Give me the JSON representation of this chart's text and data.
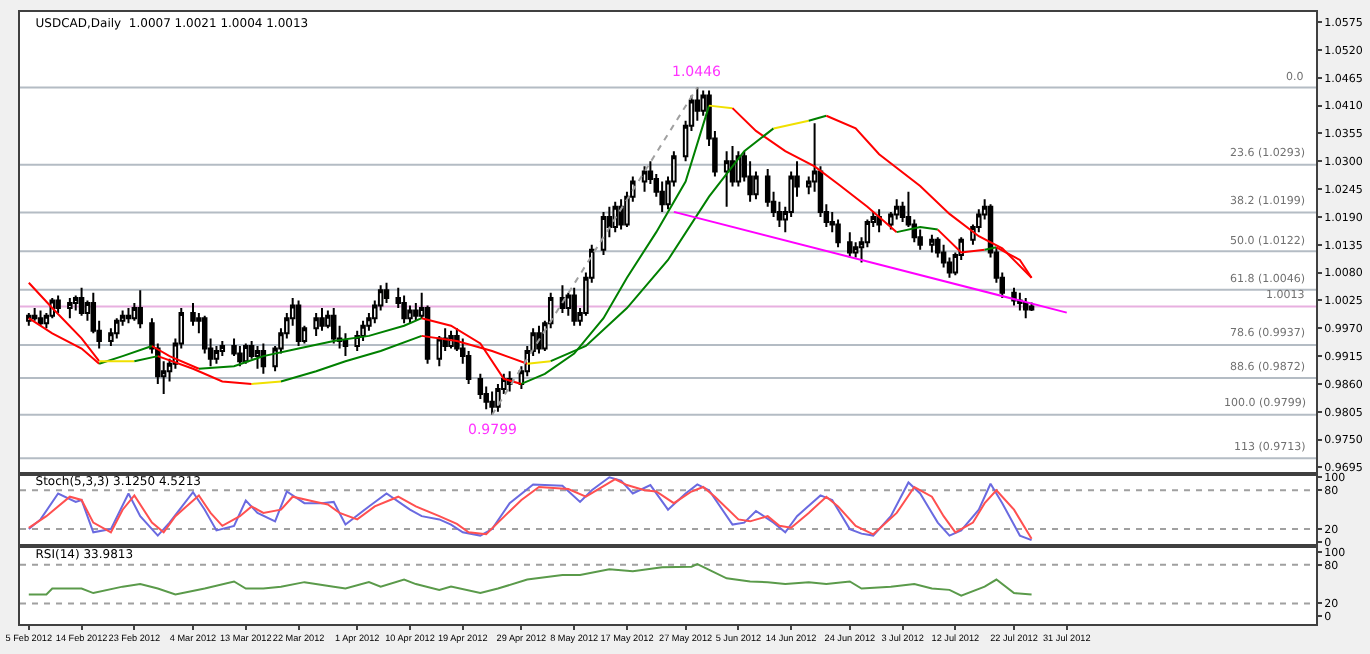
{
  "chart_data": [
    {
      "type": "candlestick",
      "title": "USDCAD,Daily  1.0007 1.0021 1.0004 1.0013",
      "tick_labels": "y",
      "xlim": [
        "2012-02-03T12:00",
        "2012-09-11T12:00"
      ],
      "ylim": [
        0.9686,
        1.0595
      ],
      "yticks": [
        1.0575,
        {
          "value": 1.052,
          "label": "1.0520"
        },
        1.0465,
        {
          "value": 1.041,
          "label": "1.0410"
        },
        1.0355,
        {
          "value": 1.03,
          "label": "1.0300"
        },
        1.0245,
        {
          "value": 1.019,
          "label": "1.0190"
        },
        1.0135,
        {
          "value": 1.008,
          "label": "1.0080"
        },
        1.0025,
        {
          "value": 0.997,
          "label": "0.9970"
        },
        0.9915,
        {
          "value": 0.986,
          "label": "0.9860"
        },
        0.9805,
        {
          "value": 0.975,
          "label": "0.9750"
        },
        0.9695
      ],
      "x": [
        "2012-02-05",
        "2012-02-06",
        "2012-02-07",
        "2012-02-08",
        "2012-02-09",
        "2012-02-10",
        "2012-02-12",
        "2012-02-13",
        "2012-02-14",
        "2012-02-15",
        "2012-02-16",
        "2012-02-17",
        "2012-02-19",
        "2012-02-20",
        "2012-02-21",
        "2012-02-22",
        "2012-02-23",
        "2012-02-24",
        "2012-02-26",
        "2012-02-27",
        "2012-02-28",
        "2012-02-29",
        "2012-03-01",
        "2012-03-02",
        "2012-03-04",
        "2012-03-05",
        "2012-03-06",
        "2012-03-07",
        "2012-03-08",
        "2012-03-09",
        "2012-03-11",
        "2012-03-12",
        "2012-03-13",
        "2012-03-14",
        "2012-03-15",
        "2012-03-16",
        "2012-03-18",
        "2012-03-19",
        "2012-03-20",
        "2012-03-21",
        "2012-03-22",
        "2012-03-23",
        "2012-03-25",
        "2012-03-26",
        "2012-03-27",
        "2012-03-28",
        "2012-03-29",
        "2012-03-30",
        "2012-04-01",
        "2012-04-02",
        "2012-04-03",
        "2012-04-04",
        "2012-04-05",
        "2012-04-06",
        "2012-04-08",
        "2012-04-09",
        "2012-04-10",
        "2012-04-11",
        "2012-04-12",
        "2012-04-13",
        "2012-04-15",
        "2012-04-16",
        "2012-04-17",
        "2012-04-18",
        "2012-04-19",
        "2012-04-20",
        "2012-04-22",
        "2012-04-23",
        "2012-04-24",
        "2012-04-25",
        "2012-04-26",
        "2012-04-27",
        "2012-04-29",
        "2012-04-30",
        "2012-05-01",
        "2012-05-02",
        "2012-05-03",
        "2012-05-04",
        "2012-05-06",
        "2012-05-07",
        "2012-05-08",
        "2012-05-09",
        "2012-05-10",
        "2012-05-11",
        "2012-05-13",
        "2012-05-14",
        "2012-05-15",
        "2012-05-16",
        "2012-05-17",
        "2012-05-18",
        "2012-05-20",
        "2012-05-21",
        "2012-05-22",
        "2012-05-23",
        "2012-05-24",
        "2012-05-25",
        "2012-05-27",
        "2012-05-28",
        "2012-05-29",
        "2012-05-30",
        "2012-05-31",
        "2012-06-01",
        "2012-06-03",
        "2012-06-04",
        "2012-06-05",
        "2012-06-06",
        "2012-06-07",
        "2012-06-08",
        "2012-06-10",
        "2012-06-11",
        "2012-06-12",
        "2012-06-13",
        "2012-06-14",
        "2012-06-15",
        "2012-06-17",
        "2012-06-18",
        "2012-06-19",
        "2012-06-20",
        "2012-06-21",
        "2012-06-22",
        "2012-06-24",
        "2012-06-25",
        "2012-06-26",
        "2012-06-27",
        "2012-06-28",
        "2012-06-29",
        "2012-07-01",
        "2012-07-02",
        "2012-07-03",
        "2012-07-04",
        "2012-07-05",
        "2012-07-06",
        "2012-07-08",
        "2012-07-09",
        "2012-07-10",
        "2012-07-11",
        "2012-07-12",
        "2012-07-13",
        "2012-07-15",
        "2012-07-16",
        "2012-07-17",
        "2012-07-18",
        "2012-07-19",
        "2012-07-20",
        "2012-07-22",
        "2012-07-23",
        "2012-07-24",
        "2012-07-25"
      ],
      "ohlc": [
        [
          0.9985,
          1.0,
          0.9975,
          0.9995
        ],
        [
          0.9995,
          1.001,
          0.9985,
          0.999
        ],
        [
          0.999,
          1.0005,
          0.9975,
          0.998
        ],
        [
          0.998,
          1.0,
          0.997,
          0.9995
        ],
        [
          0.9995,
          1.003,
          0.999,
          1.0025
        ],
        [
          1.0025,
          1.0035,
          1.0,
          1.001
        ],
        [
          1.001,
          1.003,
          0.999,
          1.002
        ],
        [
          1.002,
          1.0035,
          1.0005,
          1.003
        ],
        [
          1.003,
          1.005,
          0.9995,
          1.0
        ],
        [
          1.0,
          1.0025,
          0.9985,
          1.002
        ],
        [
          1.002,
          1.004,
          0.996,
          0.9965
        ],
        [
          0.9965,
          0.9985,
          0.993,
          0.9945
        ],
        [
          0.9945,
          0.997,
          0.9935,
          0.996
        ],
        [
          0.996,
          0.999,
          0.995,
          0.9985
        ],
        [
          0.9985,
          1.0005,
          0.9975,
          0.9995
        ],
        [
          0.9995,
          1.001,
          0.998,
          0.999
        ],
        [
          0.999,
          1.002,
          0.9985,
          1.001
        ],
        [
          1.001,
          1.0045,
          0.997,
          0.998
        ],
        [
          0.998,
          0.999,
          0.992,
          0.993
        ],
        [
          0.993,
          0.994,
          0.986,
          0.9875
        ],
        [
          0.9875,
          0.9905,
          0.984,
          0.9885
        ],
        [
          0.9885,
          0.991,
          0.9865,
          0.99
        ],
        [
          0.99,
          0.995,
          0.989,
          0.994
        ],
        [
          0.994,
          1.001,
          0.993,
          1.0
        ],
        [
          1.0,
          1.002,
          0.9975,
          0.9985
        ],
        [
          0.9985,
          1.0,
          0.996,
          0.999
        ],
        [
          0.999,
          0.9995,
          0.992,
          0.993
        ],
        [
          0.993,
          0.995,
          0.9895,
          0.991
        ],
        [
          0.991,
          0.9935,
          0.99,
          0.9925
        ],
        [
          0.9925,
          0.9945,
          0.9915,
          0.9935
        ],
        [
          0.9935,
          0.995,
          0.9915,
          0.992
        ],
        [
          0.992,
          0.9935,
          0.9895,
          0.9905
        ],
        [
          0.9905,
          0.994,
          0.99,
          0.9935
        ],
        [
          0.9935,
          0.9945,
          0.991,
          0.9915
        ],
        [
          0.9915,
          0.9935,
          0.989,
          0.9925
        ],
        [
          0.9925,
          0.994,
          0.988,
          0.9895
        ],
        [
          0.9895,
          0.9935,
          0.9885,
          0.993
        ],
        [
          0.993,
          0.997,
          0.992,
          0.996
        ],
        [
          0.996,
          1.0,
          0.995,
          0.999
        ],
        [
          0.999,
          1.003,
          0.9975,
          1.0015
        ],
        [
          1.0015,
          1.0025,
          0.9935,
          0.9945
        ],
        [
          0.9945,
          0.9975,
          0.994,
          0.997
        ],
        [
          0.997,
          1.0,
          0.9955,
          0.999
        ],
        [
          0.999,
          1.001,
          0.9965,
          0.9975
        ],
        [
          0.9975,
          1.0005,
          0.997,
          0.9995
        ],
        [
          0.9995,
          1.001,
          0.994,
          0.995
        ],
        [
          0.995,
          0.9975,
          0.993,
          0.9945
        ],
        [
          0.9945,
          0.996,
          0.9915,
          0.9935
        ],
        [
          0.9935,
          0.9965,
          0.9925,
          0.9955
        ],
        [
          0.9955,
          0.9985,
          0.9945,
          0.9975
        ],
        [
          0.9975,
          1.0,
          0.9965,
          0.999
        ],
        [
          0.999,
          1.0025,
          0.998,
          1.0015
        ],
        [
          1.0015,
          1.0055,
          1.0005,
          1.0045
        ],
        [
          1.0045,
          1.006,
          1.002,
          1.003
        ],
        [
          1.003,
          1.005,
          1.001,
          1.002
        ],
        [
          1.002,
          1.0035,
          0.998,
          0.999
        ],
        [
          0.999,
          1.0015,
          0.998,
          1.0005
        ],
        [
          1.0005,
          1.002,
          0.9985,
          0.9995
        ],
        [
          0.9995,
          1.004,
          0.999,
          1.001
        ],
        [
          1.001,
          1.0015,
          0.99,
          0.991
        ],
        [
          0.991,
          0.9955,
          0.9895,
          0.995
        ],
        [
          0.995,
          0.997,
          0.9925,
          0.9935
        ],
        [
          0.9935,
          0.9965,
          0.993,
          0.9955
        ],
        [
          0.9955,
          0.997,
          0.9925,
          0.993
        ],
        [
          0.993,
          0.995,
          0.99,
          0.9915
        ],
        [
          0.9915,
          0.9925,
          0.986,
          0.987
        ],
        [
          0.987,
          0.988,
          0.983,
          0.984
        ],
        [
          0.984,
          0.9855,
          0.981,
          0.9825
        ],
        [
          0.9825,
          0.9845,
          0.9799,
          0.9815
        ],
        [
          0.9815,
          0.986,
          0.9805,
          0.985
        ],
        [
          0.985,
          0.988,
          0.984,
          0.987
        ],
        [
          0.987,
          0.9885,
          0.9845,
          0.986
        ],
        [
          0.986,
          0.9895,
          0.985,
          0.9885
        ],
        [
          0.9885,
          0.9935,
          0.9875,
          0.9925
        ],
        [
          0.9925,
          0.997,
          0.9915,
          0.996
        ],
        [
          0.996,
          0.9975,
          0.992,
          0.993
        ],
        [
          0.993,
          0.9985,
          0.9925,
          0.998
        ],
        [
          0.998,
          1.004,
          0.997,
          1.003
        ],
        [
          1.003,
          1.0055,
          1.0,
          1.001
        ],
        [
          1.001,
          1.004,
          0.9995,
          1.0035
        ],
        [
          1.0035,
          1.005,
          0.9975,
          0.9985
        ],
        [
          0.9985,
          1.001,
          0.9975,
          1.0
        ],
        [
          1.0,
          1.008,
          0.9995,
          1.007
        ],
        [
          1.007,
          1.0135,
          1.006,
          1.0125
        ],
        [
          1.0125,
          1.02,
          1.0115,
          1.019
        ],
        [
          1.019,
          1.021,
          1.015,
          1.017
        ],
        [
          1.017,
          1.022,
          1.016,
          1.021
        ],
        [
          1.021,
          1.0225,
          1.0165,
          1.0175
        ],
        [
          1.0175,
          1.024,
          1.017,
          1.023
        ],
        [
          1.023,
          1.027,
          1.022,
          1.026
        ],
        [
          1.026,
          1.029,
          1.024,
          1.028
        ],
        [
          1.028,
          1.03,
          1.0255,
          1.0265
        ],
        [
          1.0265,
          1.0275,
          1.023,
          1.024
        ],
        [
          1.024,
          1.026,
          1.02,
          1.0215
        ],
        [
          1.0215,
          1.027,
          1.0205,
          1.026
        ],
        [
          1.026,
          1.032,
          1.025,
          1.031
        ],
        [
          1.031,
          1.038,
          1.03,
          1.037
        ],
        [
          1.037,
          1.043,
          1.036,
          1.042
        ],
        [
          1.042,
          1.0446,
          1.038,
          1.04
        ],
        [
          1.04,
          1.044,
          1.039,
          1.043
        ],
        [
          1.043,
          1.044,
          1.033,
          1.0345
        ],
        [
          1.0345,
          1.036,
          1.027,
          1.028
        ],
        [
          1.028,
          1.032,
          1.021,
          1.03
        ],
        [
          1.03,
          1.033,
          1.025,
          1.026
        ],
        [
          1.026,
          1.032,
          1.025,
          1.031
        ],
        [
          1.031,
          1.032,
          1.026,
          1.027
        ],
        [
          1.027,
          1.03,
          1.022,
          1.0235
        ],
        [
          1.0235,
          1.028,
          1.0225,
          1.027
        ],
        [
          1.027,
          1.0285,
          1.021,
          1.022
        ],
        [
          1.022,
          1.024,
          1.019,
          1.02
        ],
        [
          1.02,
          1.022,
          1.017,
          1.0185
        ],
        [
          1.0185,
          1.021,
          1.016,
          1.02
        ],
        [
          1.02,
          1.028,
          1.019,
          1.027
        ],
        [
          1.027,
          1.03,
          1.023,
          1.025
        ],
        [
          1.025,
          1.027,
          1.0235,
          1.026
        ],
        [
          1.026,
          1.0375,
          1.024,
          1.028
        ],
        [
          1.028,
          1.029,
          1.019,
          1.02
        ],
        [
          1.02,
          1.0215,
          1.017,
          1.018
        ],
        [
          1.018,
          1.02,
          1.016,
          1.0175
        ],
        [
          1.0175,
          1.0185,
          1.013,
          1.014
        ],
        [
          1.014,
          1.016,
          1.011,
          1.012
        ],
        [
          1.012,
          1.014,
          1.011,
          1.013
        ],
        [
          1.013,
          1.015,
          1.01,
          1.014
        ],
        [
          1.014,
          1.0185,
          1.013,
          1.018
        ],
        [
          1.018,
          1.02,
          1.017,
          1.019
        ],
        [
          1.019,
          1.0205,
          1.016,
          1.0175
        ],
        [
          1.0175,
          1.02,
          1.0165,
          1.0195
        ],
        [
          1.0195,
          1.0225,
          1.0185,
          1.021
        ],
        [
          1.021,
          1.022,
          1.018,
          1.019
        ],
        [
          1.019,
          1.024,
          1.017,
          1.0175
        ],
        [
          1.0175,
          1.0185,
          1.014,
          1.015
        ],
        [
          1.015,
          1.0165,
          1.0125,
          1.0135
        ],
        [
          1.0135,
          1.0155,
          1.012,
          1.0145
        ],
        [
          1.0145,
          1.015,
          1.011,
          1.012
        ],
        [
          1.012,
          1.0135,
          1.009,
          1.01
        ],
        [
          1.01,
          1.011,
          1.007,
          1.008
        ],
        [
          1.008,
          1.012,
          1.0075,
          1.0115
        ],
        [
          1.0115,
          1.015,
          1.0105,
          1.0145
        ],
        [
          1.0145,
          1.0175,
          1.0135,
          1.017
        ],
        [
          1.017,
          1.0205,
          1.016,
          1.0195
        ],
        [
          1.0195,
          1.0225,
          1.0185,
          1.021
        ],
        [
          1.021,
          1.0215,
          1.011,
          1.012
        ],
        [
          1.012,
          1.013,
          1.006,
          1.007
        ],
        [
          1.007,
          1.008,
          1.003,
          1.004
        ],
        [
          1.004,
          1.005,
          1.0015,
          1.0025
        ],
        [
          1.0025,
          1.004,
          1.0005,
          1.002
        ],
        [
          1.002,
          1.003,
          0.999,
          1.0007
        ],
        [
          1.0007,
          1.0021,
          1.0004,
          1.0013
        ]
      ],
      "series": [
        {
          "type": "line",
          "color": "#ff0000",
          "x": [
            "2012-02-05",
            "2012-02-09",
            "2012-02-14",
            "2012-02-17"
          ],
          "values": [
            0.999,
            0.996,
            0.993,
            0.99
          ]
        },
        {
          "type": "line",
          "color": "#008000",
          "x": [
            "2012-02-17",
            "2012-02-21",
            "2012-02-26"
          ],
          "values": [
            0.99,
            0.9915,
            0.9935
          ]
        },
        {
          "type": "line",
          "color": "#ff0000",
          "x": [
            "2012-02-26",
            "2012-02-29",
            "2012-03-05"
          ],
          "values": [
            0.9935,
            0.9915,
            0.989
          ]
        },
        {
          "type": "line",
          "color": "#008000",
          "x": [
            "2012-03-05",
            "2012-03-11",
            "2012-03-16",
            "2012-03-22",
            "2012-03-28",
            "2012-04-03",
            "2012-04-09",
            "2012-04-12"
          ],
          "values": [
            0.989,
            0.9895,
            0.9915,
            0.993,
            0.9945,
            0.9955,
            0.9975,
            0.999
          ]
        },
        {
          "type": "line",
          "color": "#ff0000",
          "x": [
            "2012-04-12",
            "2012-04-17",
            "2012-04-22",
            "2012-04-26",
            "2012-04-29"
          ],
          "values": [
            0.999,
            0.9975,
            0.994,
            0.987,
            0.986
          ]
        },
        {
          "type": "line",
          "color": "#008000",
          "x": [
            "2012-04-29",
            "2012-05-03",
            "2012-05-08",
            "2012-05-13",
            "2012-05-17",
            "2012-05-22",
            "2012-05-27",
            "2012-05-31"
          ],
          "values": [
            0.986,
            0.988,
            0.992,
            0.999,
            1.007,
            1.016,
            1.026,
            1.041
          ]
        },
        {
          "type": "line",
          "color": "#f0e000",
          "x": [
            "2012-05-31",
            "2012-06-04"
          ],
          "values": [
            1.041,
            1.0405
          ]
        },
        {
          "type": "line",
          "color": "#ff0000",
          "x": [
            "2012-06-04",
            "2012-06-08",
            "2012-06-13",
            "2012-06-18",
            "2012-06-22",
            "2012-06-27",
            "2012-07-02"
          ],
          "values": [
            1.0405,
            1.036,
            1.032,
            1.029,
            1.0255,
            1.021,
            1.016
          ]
        },
        {
          "type": "line",
          "color": "#008000",
          "x": [
            "2012-07-02",
            "2012-07-06",
            "2012-07-09"
          ],
          "values": [
            1.016,
            1.017,
            1.0165
          ]
        },
        {
          "type": "line",
          "color": "#ff0000",
          "x": [
            "2012-07-09",
            "2012-07-13",
            "2012-07-17"
          ],
          "values": [
            1.0165,
            1.012,
            1.0125
          ]
        },
        {
          "type": "line",
          "color": "#008000",
          "x": [
            "2012-07-17",
            "2012-07-19"
          ],
          "values": [
            1.0125,
            1.013
          ]
        },
        {
          "type": "line",
          "color": "#ff0000",
          "x": [
            "2012-07-19",
            "2012-07-23",
            "2012-07-25"
          ],
          "values": [
            1.013,
            1.0105,
            1.007
          ]
        },
        {
          "type": "line",
          "color": "#ff0000",
          "x": [
            "2012-02-05",
            "2012-02-09",
            "2012-02-14",
            "2012-02-17"
          ],
          "values": [
            1.006,
            1.001,
            0.995,
            0.9905
          ]
        },
        {
          "type": "line",
          "color": "#f0e000",
          "x": [
            "2012-02-17",
            "2012-02-23"
          ],
          "values": [
            0.9905,
            0.9905
          ]
        },
        {
          "type": "line",
          "color": "#008000",
          "x": [
            "2012-02-23",
            "2012-02-27"
          ],
          "values": [
            0.9905,
            0.9915
          ]
        },
        {
          "type": "line",
          "color": "#ff0000",
          "x": [
            "2012-02-27",
            "2012-03-04",
            "2012-03-09",
            "2012-03-14"
          ],
          "values": [
            0.9915,
            0.989,
            0.9865,
            0.986
          ]
        },
        {
          "type": "line",
          "color": "#f0e000",
          "x": [
            "2012-03-14",
            "2012-03-19"
          ],
          "values": [
            0.986,
            0.9865
          ]
        },
        {
          "type": "line",
          "color": "#008000",
          "x": [
            "2012-03-19",
            "2012-03-25",
            "2012-03-30",
            "2012-04-05",
            "2012-04-12"
          ],
          "values": [
            0.9865,
            0.9885,
            0.9905,
            0.9925,
            0.9955
          ]
        },
        {
          "type": "line",
          "color": "#ff0000",
          "x": [
            "2012-04-12",
            "2012-04-18",
            "2012-04-24",
            "2012-04-30"
          ],
          "values": [
            0.9955,
            0.9945,
            0.9925,
            0.99
          ]
        },
        {
          "type": "line",
          "color": "#f0e000",
          "x": [
            "2012-04-30",
            "2012-05-04"
          ],
          "values": [
            0.99,
            0.9905
          ]
        },
        {
          "type": "line",
          "color": "#008000",
          "x": [
            "2012-05-04",
            "2012-05-10",
            "2012-05-17",
            "2012-05-24",
            "2012-05-31",
            "2012-06-06",
            "2012-06-11"
          ],
          "values": [
            0.9905,
            0.9935,
            1.001,
            1.0105,
            1.023,
            1.032,
            1.0365
          ]
        },
        {
          "type": "line",
          "color": "#f0e000",
          "x": [
            "2012-06-11",
            "2012-06-17"
          ],
          "values": [
            1.0365,
            1.038
          ]
        },
        {
          "type": "line",
          "color": "#008000",
          "x": [
            "2012-06-17",
            "2012-06-20"
          ],
          "values": [
            1.038,
            1.039
          ]
        },
        {
          "type": "line",
          "color": "#ff0000",
          "x": [
            "2012-06-20",
            "2012-06-25",
            "2012-06-29",
            "2012-07-06",
            "2012-07-11",
            "2012-07-16",
            "2012-07-20",
            "2012-07-25"
          ],
          "values": [
            1.039,
            1.0365,
            1.0314,
            1.0251,
            1.0196,
            1.0152,
            1.0128,
            1.007
          ]
        },
        {
          "type": "line",
          "color": "#ff00ff",
          "x": [
            "2012-05-25",
            "2012-07-31"
          ],
          "values": [
            1.02,
            1.0001
          ]
        },
        {
          "type": "line",
          "color": "#a0a0a0",
          "line_style": "dotted",
          "x": [
            "2012-04-24",
            "2012-05-29"
          ],
          "values": [
            0.9799,
            1.0446
          ]
        }
      ],
      "ref_lines": [
        {
          "axis": "y",
          "value": 1.0446,
          "color": "#b4bcc4"
        },
        {
          "axis": "y",
          "value": 1.0293,
          "label": "23.6 (1.0293)",
          "color": "#b4bcc4"
        },
        {
          "axis": "y",
          "value": 1.0199,
          "label": "38.2 (1.0199)",
          "color": "#b4bcc4"
        },
        {
          "axis": "y",
          "value": 1.0122,
          "label": "50.0 (1.0122)",
          "color": "#b4bcc4"
        },
        {
          "axis": "y",
          "value": 1.0046,
          "label": "61.8 (1.0046)",
          "color": "#b4bcc4"
        },
        {
          "axis": "y",
          "value": 0.9937,
          "label": "78.6 (0.9937)",
          "color": "#b4bcc4"
        },
        {
          "axis": "y",
          "value": 0.9872,
          "label": "88.6 (0.9872)",
          "color": "#b4bcc4"
        },
        {
          "axis": "y",
          "value": 0.9799,
          "label": "100.0 (0.9799)",
          "color": "#b4bcc4"
        },
        {
          "axis": "y",
          "value": 0.9713,
          "label": "113 (0.9713)",
          "color": "#b4bcc4"
        },
        {
          "axis": "y",
          "value": 1.0013,
          "label": "1.0013",
          "color": "#e8b0e0"
        }
      ],
      "annotations": [
        {
          "text": "1.0446",
          "x": "2012-05-29",
          "y": 1.0446
        },
        {
          "text": "0.9799",
          "x": "2012-04-24",
          "y": 0.9799
        },
        {
          "text": "0.0",
          "x": "2012-09-10",
          "y": 1.0446
        }
      ]
    },
    {
      "type": "line",
      "title": "Stoch(5,3,3) 3.1250 4.5213",
      "tick_labels": "y",
      "xlim": [
        "2012-02-03T12:00",
        "2012-09-11T12:00"
      ],
      "ylim": [
        -3,
        102
      ],
      "yticks": [
        100,
        80,
        20,
        0
      ],
      "series": [
        {
          "color": "#6a6ae0",
          "x": [
            "2012-02-05",
            "2012-02-07",
            "2012-02-10",
            "2012-02-13",
            "2012-02-14",
            "2012-02-16",
            "2012-02-19",
            "2012-02-22",
            "2012-02-24",
            "2012-02-27",
            "2012-02-29",
            "2012-03-04",
            "2012-03-06",
            "2012-03-08",
            "2012-03-11",
            "2012-03-13",
            "2012-03-15",
            "2012-03-18",
            "2012-03-20",
            "2012-03-23",
            "2012-03-26",
            "2012-03-28",
            "2012-03-30",
            "2012-04-03",
            "2012-04-06",
            "2012-04-10",
            "2012-04-12",
            "2012-04-15",
            "2012-04-17",
            "2012-04-19",
            "2012-04-22",
            "2012-04-24",
            "2012-04-27",
            "2012-05-01",
            "2012-05-06",
            "2012-05-09",
            "2012-05-11",
            "2012-05-14",
            "2012-05-16",
            "2012-05-18",
            "2012-05-21",
            "2012-05-24",
            "2012-05-27",
            "2012-05-29",
            "2012-05-31",
            "2012-06-04",
            "2012-06-06",
            "2012-06-08",
            "2012-06-11",
            "2012-06-13",
            "2012-06-15",
            "2012-06-19",
            "2012-06-21",
            "2012-06-24",
            "2012-06-26",
            "2012-06-28",
            "2012-07-01",
            "2012-07-04",
            "2012-07-06",
            "2012-07-09",
            "2012-07-11",
            "2012-07-13",
            "2012-07-16",
            "2012-07-18",
            "2012-07-20",
            "2012-07-23",
            "2012-07-25"
          ],
          "values": [
            20,
            35,
            75,
            62,
            65,
            15,
            20,
            75,
            40,
            10,
            30,
            77,
            50,
            18,
            25,
            64,
            45,
            32,
            78,
            60,
            60,
            62,
            27,
            55,
            75,
            50,
            40,
            35,
            27,
            15,
            10,
            20,
            60,
            89,
            87,
            62,
            80,
            100,
            95,
            75,
            88,
            50,
            75,
            89,
            80,
            27,
            30,
            48,
            30,
            15,
            40,
            72,
            65,
            20,
            13,
            10,
            40,
            92,
            75,
            30,
            10,
            18,
            50,
            90,
            60,
            10,
            3
          ]
        },
        {
          "color": "#ff5050",
          "x": [
            "2012-02-05",
            "2012-02-08",
            "2012-02-12",
            "2012-02-14",
            "2012-02-16",
            "2012-02-19",
            "2012-02-21",
            "2012-02-23",
            "2012-02-26",
            "2012-02-28",
            "2012-03-01",
            "2012-03-05",
            "2012-03-07",
            "2012-03-09",
            "2012-03-12",
            "2012-03-14",
            "2012-03-16",
            "2012-03-19",
            "2012-03-21",
            "2012-03-25",
            "2012-03-27",
            "2012-03-29",
            "2012-04-01",
            "2012-04-04",
            "2012-04-08",
            "2012-04-11",
            "2012-04-15",
            "2012-04-18",
            "2012-04-20",
            "2012-04-23",
            "2012-04-25",
            "2012-04-29",
            "2012-05-02",
            "2012-05-07",
            "2012-05-10",
            "2012-05-15",
            "2012-05-17",
            "2012-05-20",
            "2012-05-22",
            "2012-05-25",
            "2012-05-28",
            "2012-05-30",
            "2012-06-01",
            "2012-06-05",
            "2012-06-07",
            "2012-06-10",
            "2012-06-12",
            "2012-06-14",
            "2012-06-17",
            "2012-06-20",
            "2012-06-22",
            "2012-06-25",
            "2012-06-28",
            "2012-07-02",
            "2012-07-05",
            "2012-07-08",
            "2012-07-10",
            "2012-07-12",
            "2012-07-15",
            "2012-07-17",
            "2012-07-19",
            "2012-07-22",
            "2012-07-25"
          ],
          "values": [
            22,
            40,
            70,
            65,
            30,
            15,
            50,
            72,
            30,
            15,
            40,
            72,
            45,
            25,
            40,
            55,
            45,
            50,
            70,
            62,
            58,
            45,
            35,
            55,
            70,
            55,
            40,
            28,
            15,
            12,
            30,
            65,
            85,
            82,
            70,
            97,
            88,
            80,
            78,
            60,
            78,
            85,
            70,
            35,
            32,
            40,
            25,
            22,
            45,
            70,
            55,
            25,
            12,
            45,
            85,
            70,
            40,
            15,
            30,
            60,
            80,
            50,
            5
          ]
        }
      ],
      "ref_lines": [
        {
          "axis": "y",
          "value": 80,
          "color": "#a0a0a0",
          "line_style": "dotted"
        },
        {
          "axis": "y",
          "value": 20,
          "color": "#a0a0a0",
          "line_style": "dotted"
        }
      ]
    },
    {
      "type": "line",
      "title": "RSI(14) 33.9813",
      "xlim": [
        "2012-02-03T12:00",
        "2012-09-11T12:00"
      ],
      "ylim": [
        -12,
        106
      ],
      "yticks": [
        100,
        80,
        20,
        0
      ],
      "xticks": [
        {
          "value": "2012-02-05",
          "label": "5 Feb 2012"
        },
        {
          "value": "2012-02-14",
          "label": "14 Feb 2012"
        },
        {
          "value": "2012-02-23",
          "label": "23 Feb 2012"
        },
        {
          "value": "2012-03-04",
          "label": "4 Mar 2012"
        },
        {
          "value": "2012-03-13",
          "label": "13 Mar 2012"
        },
        {
          "value": "2012-03-22",
          "label": "22 Mar 2012"
        },
        {
          "value": "2012-04-01",
          "label": "1 Apr 2012"
        },
        {
          "value": "2012-04-10",
          "label": "10 Apr 2012"
        },
        {
          "value": "2012-04-19",
          "label": "19 Apr 2012"
        },
        {
          "value": "2012-04-29",
          "label": "29 Apr 2012"
        },
        {
          "value": "2012-05-08",
          "label": "8 May 2012"
        },
        {
          "value": "2012-05-17",
          "label": "17 May 2012"
        },
        {
          "value": "2012-05-27",
          "label": "27 May 2012"
        },
        {
          "value": "2012-06-05",
          "label": "5 Jun 2012"
        },
        {
          "value": "2012-06-14",
          "label": "14 Jun 2012"
        },
        {
          "value": "2012-06-24",
          "label": "24 Jun 2012"
        },
        {
          "value": "2012-07-03",
          "label": "3 Jul 2012"
        },
        {
          "value": "2012-07-12",
          "label": "12 Jul 2012"
        },
        {
          "value": "2012-07-22",
          "label": "22 Jul 2012"
        },
        {
          "value": "2012-07-31",
          "label": "31 Jul 2012"
        }
      ],
      "series": [
        {
          "color": "#5a9a4a",
          "x": [
            "2012-02-05",
            "2012-02-08",
            "2012-02-09",
            "2012-02-14",
            "2012-02-16",
            "2012-02-21",
            "2012-02-24",
            "2012-02-27",
            "2012-03-01",
            "2012-03-06",
            "2012-03-11",
            "2012-03-13",
            "2012-03-16",
            "2012-03-19",
            "2012-03-23",
            "2012-03-28",
            "2012-03-30",
            "2012-04-03",
            "2012-04-05",
            "2012-04-09",
            "2012-04-11",
            "2012-04-15",
            "2012-04-17",
            "2012-04-22",
            "2012-04-25",
            "2012-04-30",
            "2012-05-06",
            "2012-05-09",
            "2012-05-14",
            "2012-05-18",
            "2012-05-23",
            "2012-05-28",
            "2012-05-29",
            "2012-06-03",
            "2012-06-07",
            "2012-06-10",
            "2012-06-13",
            "2012-06-17",
            "2012-06-20",
            "2012-06-24",
            "2012-06-26",
            "2012-07-01",
            "2012-07-05",
            "2012-07-08",
            "2012-07-11",
            "2012-07-13",
            "2012-07-17",
            "2012-07-19",
            "2012-07-22",
            "2012-07-25"
          ],
          "values": [
            34,
            34,
            43,
            43,
            36,
            46,
            50,
            43,
            34,
            43,
            54,
            43,
            43,
            46,
            53,
            46,
            43,
            53,
            46,
            57,
            50,
            41,
            46,
            36,
            43,
            57,
            64,
            64,
            73,
            70,
            76,
            77,
            81,
            59,
            54,
            53,
            50,
            53,
            50,
            54,
            43,
            46,
            50,
            43,
            41,
            32,
            46,
            57,
            36,
            34
          ]
        }
      ],
      "ref_lines": [
        {
          "axis": "y",
          "value": 80,
          "color": "#a0a0a0",
          "line_style": "dotted"
        },
        {
          "axis": "y",
          "value": 20,
          "color": "#a0a0a0",
          "line_style": "dotted"
        }
      ]
    }
  ]
}
